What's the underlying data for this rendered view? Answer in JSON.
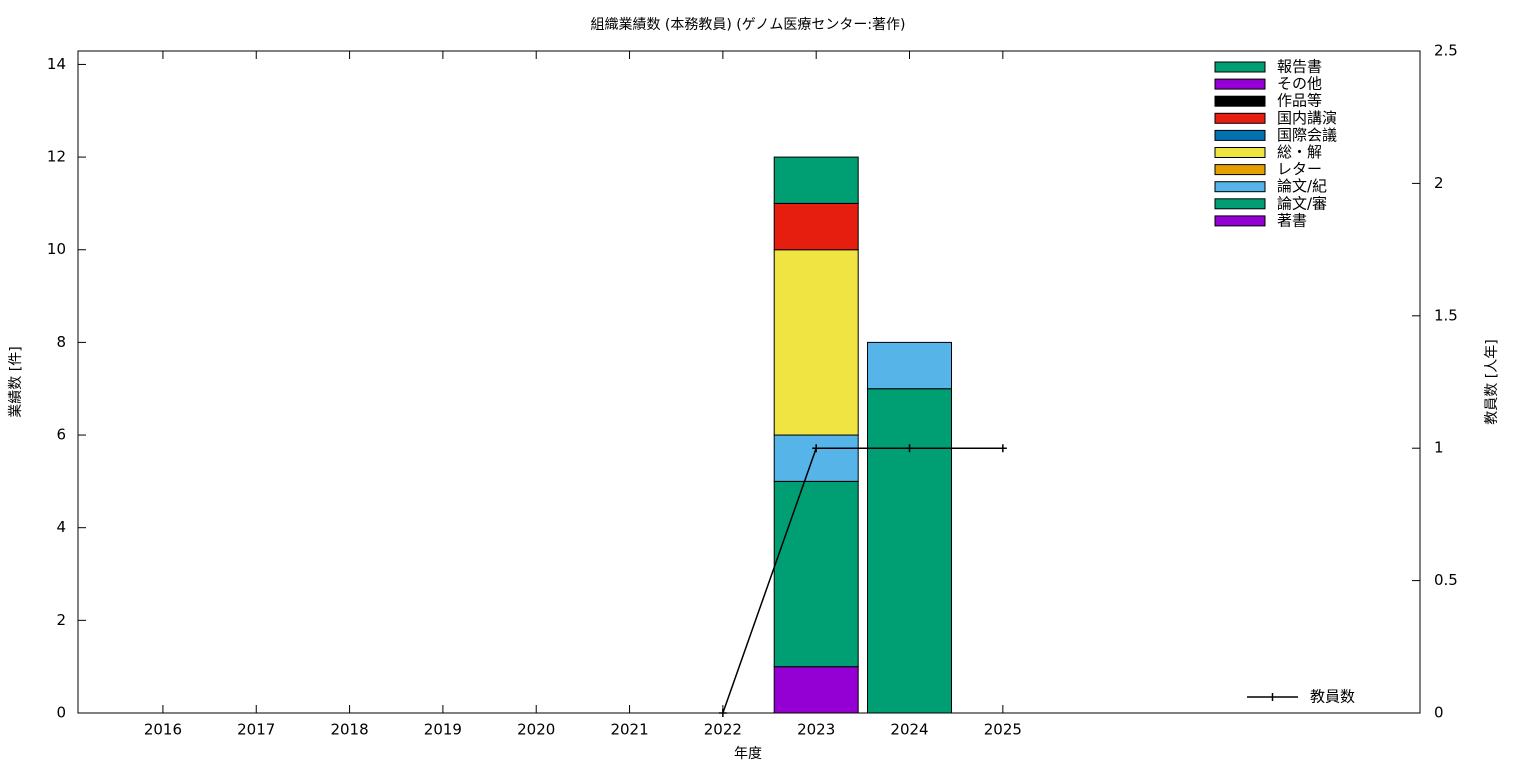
{
  "chart_data": {
    "type": "bar",
    "title": "組織業績数 (本務教員) (ゲノム医療センター:著作)",
    "x_label": "年度",
    "y_label": "業績数 [件]",
    "y2_label": "教員数 [人年]",
    "x": [
      2016,
      2017,
      2018,
      2019,
      2020,
      2021,
      2022,
      2023,
      2024,
      2025
    ],
    "xlim": [
      2015.09,
      2029.47
    ],
    "xticks": [
      2016,
      2017,
      2018,
      2019,
      2020,
      2021,
      2022,
      2023,
      2024,
      2025
    ],
    "ylim": [
      0,
      14.29
    ],
    "yticks": [
      0,
      2,
      4,
      6,
      8,
      10,
      12,
      14
    ],
    "y2lim": [
      0,
      2.5
    ],
    "y2ticks": [
      0,
      0.5,
      1,
      1.5,
      2,
      2.5
    ],
    "stacked": true,
    "series": [
      {
        "name": "著書",
        "color": "#9400d3",
        "values": [
          0,
          0,
          0,
          0,
          0,
          0,
          0,
          1,
          0,
          0
        ]
      },
      {
        "name": "論文/審",
        "color": "#009e73",
        "values": [
          0,
          0,
          0,
          0,
          0,
          0,
          0,
          4,
          7,
          0
        ]
      },
      {
        "name": "論文/紀",
        "color": "#56b4e9",
        "values": [
          0,
          0,
          0,
          0,
          0,
          0,
          0,
          1,
          1,
          0
        ]
      },
      {
        "name": "レター",
        "color": "#e69f00",
        "values": [
          0,
          0,
          0,
          0,
          0,
          0,
          0,
          0,
          0,
          0
        ]
      },
      {
        "name": "総・解",
        "color": "#f0e442",
        "values": [
          0,
          0,
          0,
          0,
          0,
          0,
          0,
          4,
          0,
          0
        ]
      },
      {
        "name": "国際会議",
        "color": "#0072b2",
        "values": [
          0,
          0,
          0,
          0,
          0,
          0,
          0,
          0,
          0,
          0
        ]
      },
      {
        "name": "国内講演",
        "color": "#e51e10",
        "values": [
          0,
          0,
          0,
          0,
          0,
          0,
          0,
          1,
          0,
          0
        ]
      },
      {
        "name": "作品等",
        "color": "#000000",
        "values": [
          0,
          0,
          0,
          0,
          0,
          0,
          0,
          0,
          0,
          0
        ]
      },
      {
        "name": "その他",
        "color": "#9400d3",
        "values": [
          0,
          0,
          0,
          0,
          0,
          0,
          0,
          0,
          0,
          0
        ]
      },
      {
        "name": "報告書",
        "color": "#009e73",
        "values": [
          0,
          0,
          0,
          0,
          0,
          0,
          0,
          1,
          0,
          0
        ]
      },
      {
        "name": "教員数",
        "type": "line",
        "axis": "y2",
        "color": "#000000",
        "x": [
          2022,
          2023,
          2024,
          2025
        ],
        "values": [
          0,
          1,
          1,
          1
        ]
      }
    ]
  }
}
